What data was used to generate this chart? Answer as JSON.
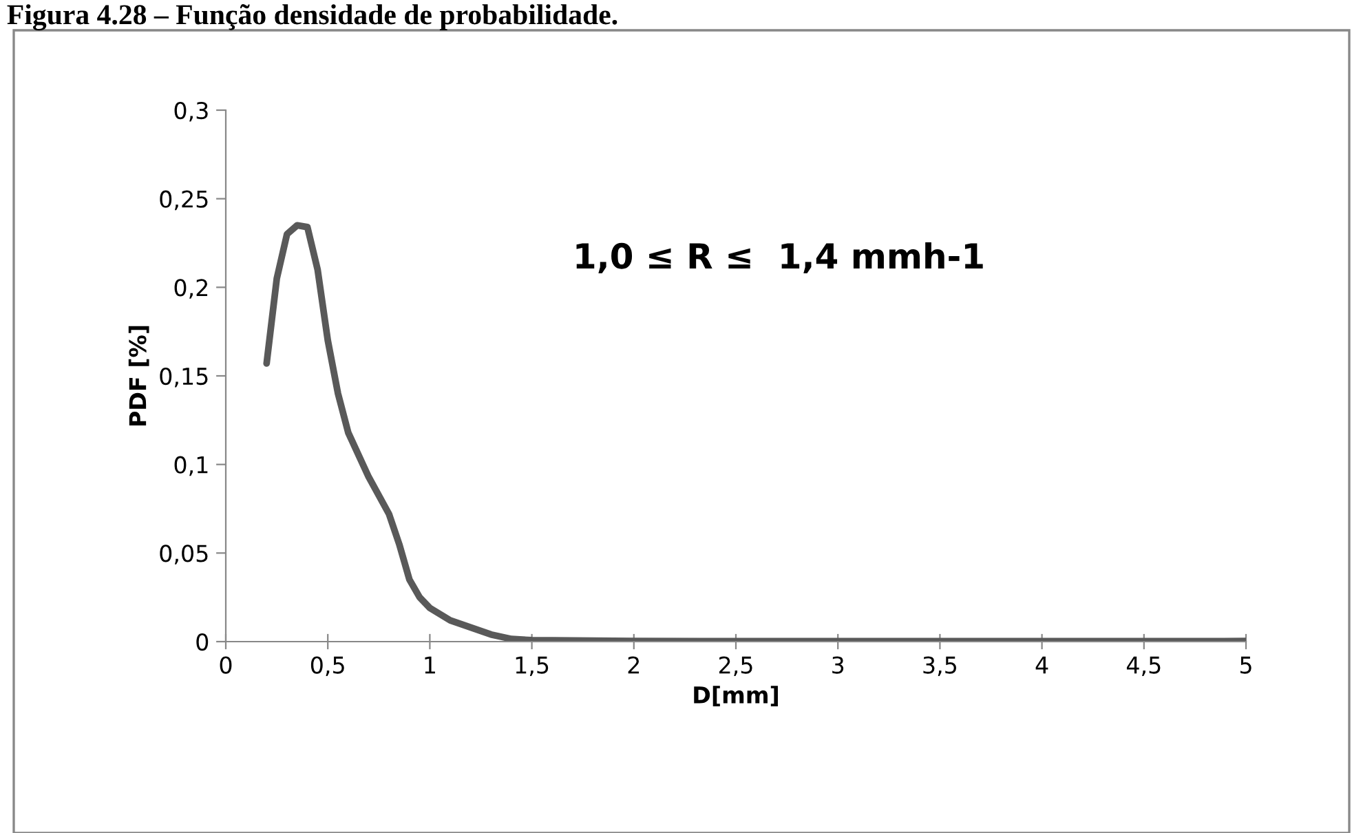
{
  "chart_data": {
    "type": "line",
    "title": "Figura 4.28 – Função densidade de probabilidade.",
    "xlabel": "D[mm]",
    "ylabel": "PDF [%]",
    "annotations": [
      "1,0 ≤ R ≤  1,4 mmh-1"
    ],
    "x": [
      0.2,
      0.25,
      0.3,
      0.35,
      0.4,
      0.45,
      0.5,
      0.55,
      0.6,
      0.7,
      0.8,
      0.85,
      0.9,
      0.95,
      1.0,
      1.1,
      1.2,
      1.3,
      1.4,
      1.5,
      2,
      3,
      4,
      5
    ],
    "series": [
      {
        "color": "#595959",
        "values": [
          0.157,
          0.205,
          0.23,
          0.235,
          0.234,
          0.21,
          0.17,
          0.14,
          0.118,
          0.093,
          0.072,
          0.055,
          0.035,
          0.025,
          0.019,
          0.012,
          0.008,
          0.004,
          0.0015,
          0.0008,
          0.0003,
          0.0002,
          0.0002,
          0.0003
        ]
      }
    ],
    "xlim": [
      0,
      5
    ],
    "xticks": [
      0,
      {
        "value": 0.5,
        "label": "0,5"
      },
      1,
      {
        "value": 1.5,
        "label": "1,5"
      },
      2,
      {
        "value": 2.5,
        "label": "2,5"
      },
      3,
      {
        "value": 3.5,
        "label": "3,5"
      },
      4,
      {
        "value": 4.5,
        "label": "4,5"
      },
      5
    ],
    "ylim": [
      0,
      0.3
    ],
    "yticks": [
      0,
      {
        "value": 0.05,
        "label": "0,05"
      },
      {
        "value": 0.1,
        "label": "0,1"
      },
      {
        "value": 0.15,
        "label": "0,15"
      },
      {
        "value": 0.2,
        "label": "0,2"
      },
      {
        "value": 0.25,
        "label": "0,25"
      },
      {
        "value": 0.3,
        "label": "0,3"
      }
    ],
    "grid": false,
    "legend": false,
    "marker": "none",
    "line_style": "solid"
  }
}
